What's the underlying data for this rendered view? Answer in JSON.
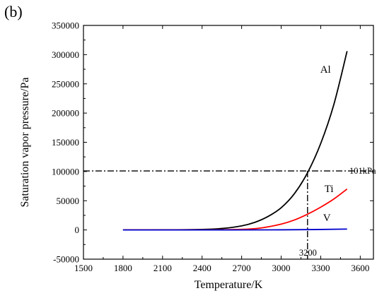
{
  "chart_data": {
    "type": "line",
    "panel_label": "(b)",
    "xlabel": "Temperature/K",
    "ylabel": "Saturation vapor pressure/Pa",
    "xlim": [
      1500,
      3700
    ],
    "ylim": [
      -50000,
      350000
    ],
    "x_ticks": [
      1500,
      1800,
      2100,
      2400,
      2700,
      3000,
      3300,
      3600
    ],
    "y_ticks": [
      -50000,
      0,
      50000,
      100000,
      150000,
      200000,
      250000,
      300000,
      350000
    ],
    "series": [
      {
        "name": "Al",
        "color": "#000000",
        "x": [
          1800,
          2100,
          2400,
          2550,
          2700,
          2800,
          2900,
          3000,
          3100,
          3200,
          3300,
          3400,
          3500
        ],
        "y": [
          0,
          100,
          800,
          2500,
          7000,
          13000,
          23000,
          38000,
          62000,
          98000,
          148000,
          215000,
          306000
        ]
      },
      {
        "name": "Ti",
        "color": "#ff0000",
        "x": [
          1800,
          2400,
          2700,
          2850,
          3000,
          3100,
          3200,
          3300,
          3400,
          3500
        ],
        "y": [
          0,
          100,
          1000,
          3500,
          10000,
          17000,
          27000,
          39000,
          53000,
          70000
        ]
      },
      {
        "name": "V",
        "color": "#0000cc",
        "x": [
          1800,
          2400,
          3000,
          3300,
          3500
        ],
        "y": [
          0,
          0,
          200,
          800,
          1500
        ]
      }
    ],
    "annotations": {
      "hline": {
        "y": 101000,
        "label": "101kPa",
        "style": "dash-dot"
      },
      "vline": {
        "x": 3200,
        "label": "3200",
        "style": "dash-dot"
      }
    },
    "grid": false,
    "legend": "inline labels near curve ends"
  }
}
